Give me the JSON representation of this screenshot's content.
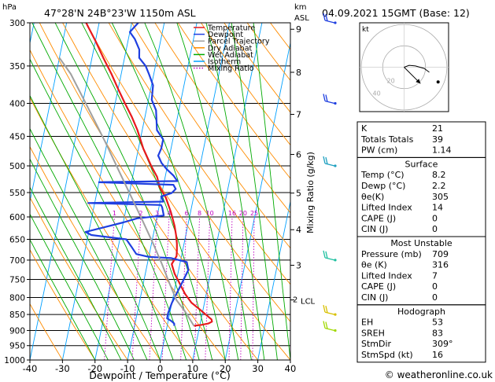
{
  "header": {
    "location": "47°28'N  24B°23'W  1150m  ASL",
    "datetime": "04.09.2021  15GMT  (Base: 12)"
  },
  "chart_data": {
    "type": "line",
    "title": "47°28'N  24B°23'W  1150m  ASL",
    "xlabel": "Dewpoint / Temperature (°C)",
    "ylabel": "hPa",
    "ylabel_right_top": "km",
    "ylabel_right_sub": "ASL",
    "mixing_ratio_label": "Mixing Ratio (g/kg)",
    "xlim": [
      -40,
      40
    ],
    "ylim": [
      1000,
      300
    ],
    "y_scale": "log",
    "x_ticks": [
      -40,
      -30,
      -20,
      -10,
      0,
      10,
      20,
      30,
      40
    ],
    "pressure_ticks": [
      300,
      350,
      400,
      450,
      500,
      550,
      600,
      650,
      700,
      750,
      800,
      850,
      900,
      950,
      1000
    ],
    "km_ticks": [
      {
        "label": "9",
        "p": 307
      },
      {
        "label": "8",
        "p": 358
      },
      {
        "label": "7",
        "p": 416
      },
      {
        "label": "6",
        "p": 480
      },
      {
        "label": "5",
        "p": 551
      },
      {
        "label": "4",
        "p": 628
      },
      {
        "label": "3",
        "p": 713
      }
    ],
    "lcl": {
      "label": "LCL",
      "p": 807
    },
    "mixing_ratio_values": [
      "1",
      "2",
      "3",
      "4",
      "6",
      "8",
      "10",
      "16",
      "20",
      "25"
    ],
    "legend": {
      "position": "top-left",
      "entries": [
        {
          "name": "Temperature",
          "color": "#e8191c"
        },
        {
          "name": "Dewpoint",
          "color": "#1f3fe0"
        },
        {
          "name": "Parcel Trajectory",
          "color": "#a0a0a0"
        },
        {
          "name": "Dry Adiabat",
          "color": "#ff8c00"
        },
        {
          "name": "Wet Adiabat",
          "color": "#00aa00"
        },
        {
          "name": "Isotherm",
          "color": "#00a0ff"
        },
        {
          "name": "Mixing Ratio",
          "color": "#c000c0"
        }
      ]
    },
    "series": [
      {
        "name": "Temperature",
        "color": "#e8191c",
        "points": [
          [
            8.2,
            885
          ],
          [
            10.5,
            882
          ],
          [
            12.5,
            878
          ],
          [
            13.5,
            872
          ],
          [
            13.2,
            865
          ],
          [
            11.8,
            855
          ],
          [
            9,
            835
          ],
          [
            6,
            815
          ],
          [
            3.5,
            790
          ],
          [
            1.5,
            765
          ],
          [
            -1,
            735
          ],
          [
            -2.5,
            710
          ],
          [
            -1.5,
            690
          ],
          [
            -1.8,
            675
          ],
          [
            -2.2,
            660
          ],
          [
            -3,
            640
          ],
          [
            -4,
            620
          ],
          [
            -6,
            590
          ],
          [
            -8.5,
            560
          ],
          [
            -11,
            540
          ],
          [
            -12.5,
            520
          ],
          [
            -15,
            500
          ],
          [
            -18.5,
            470
          ],
          [
            -21.5,
            440
          ],
          [
            -24,
            420
          ],
          [
            -27,
            400
          ],
          [
            -30,
            380
          ],
          [
            -33,
            360
          ],
          [
            -36.5,
            340
          ],
          [
            -40,
            320
          ],
          [
            -43,
            305
          ],
          [
            -44,
            300
          ]
        ]
      },
      {
        "name": "Dewpoint",
        "color": "#1f3fe0",
        "points": [
          [
            2.2,
            885
          ],
          [
            2,
            878
          ],
          [
            1,
            870
          ],
          [
            -0.5,
            862
          ],
          [
            -0.5,
            845
          ],
          [
            0,
            815
          ],
          [
            1,
            785
          ],
          [
            2,
            755
          ],
          [
            3,
            725
          ],
          [
            2,
            705
          ],
          [
            -3,
            695
          ],
          [
            -10,
            692
          ],
          [
            -14,
            685
          ],
          [
            -16,
            667
          ],
          [
            -18,
            650
          ],
          [
            -29,
            640
          ],
          [
            -31,
            633
          ],
          [
            -20,
            612
          ],
          [
            -16,
            603
          ],
          [
            -8,
            597
          ],
          [
            -9,
            580
          ],
          [
            -9.5,
            575
          ],
          [
            -32,
            571
          ],
          [
            -9,
            568
          ],
          [
            -10,
            558
          ],
          [
            -7,
            551
          ],
          [
            -6,
            543
          ],
          [
            -7,
            535
          ],
          [
            -30,
            530
          ],
          [
            -6,
            528
          ],
          [
            -7.5,
            518
          ],
          [
            -10,
            506
          ],
          [
            -12,
            495
          ],
          [
            -13.5,
            482
          ],
          [
            -13,
            470
          ],
          [
            -13,
            455
          ],
          [
            -15.5,
            440
          ],
          [
            -17,
            410
          ],
          [
            -19,
            395
          ],
          [
            -19.5,
            375
          ],
          [
            -21.5,
            360
          ],
          [
            -23,
            350
          ],
          [
            -25.5,
            340
          ],
          [
            -26,
            330
          ],
          [
            -28,
            318
          ],
          [
            -30,
            310
          ],
          [
            -29,
            305
          ],
          [
            -28,
            300
          ]
        ]
      },
      {
        "name": "Parcel Trajectory",
        "color": "#a0a0a0",
        "points": [
          [
            8.2,
            885
          ],
          [
            4.5,
            840
          ],
          [
            1.2,
            807
          ],
          [
            -2,
            760
          ],
          [
            -5.5,
            710
          ],
          [
            -9.5,
            660
          ],
          [
            -14,
            610
          ],
          [
            -19,
            560
          ],
          [
            -24.5,
            510
          ],
          [
            -30.5,
            460
          ],
          [
            -37.5,
            410
          ],
          [
            -45.5,
            360
          ],
          [
            -50,
            340
          ]
        ]
      }
    ],
    "isotherm_step": 10,
    "skew_per_decade": 43
  },
  "hodograph": {
    "label": "kt",
    "ring_labels": [
      "20",
      "40"
    ],
    "points": [
      [
        0,
        0
      ],
      [
        4,
        1.5
      ],
      [
        9,
        1
      ],
      [
        16,
        -1
      ],
      [
        20,
        -4
      ]
    ],
    "storm_arrow": [
      [
        0,
        0
      ],
      [
        13,
        -13
      ]
    ],
    "motion_dot": [
      30,
      -13
    ]
  },
  "indices": {
    "block1": [
      {
        "label": "K",
        "value": "21"
      },
      {
        "label": "Totals Totals",
        "value": "39"
      },
      {
        "label": "PW (cm)",
        "value": "1.14"
      }
    ],
    "surface": {
      "title": "Surface",
      "rows": [
        {
          "label": "Temp (°C)",
          "value": "8.2"
        },
        {
          "label": "Dewp (°C)",
          "value": "2.2"
        },
        {
          "label": "θe(K)",
          "value": "305"
        },
        {
          "label": "Lifted Index",
          "value": "14"
        },
        {
          "label": "CAPE (J)",
          "value": "0"
        },
        {
          "label": "CIN (J)",
          "value": "0"
        }
      ]
    },
    "unstable": {
      "title": "Most Unstable",
      "rows": [
        {
          "label": "Pressure (mb)",
          "value": "709"
        },
        {
          "label": "θe (K)",
          "value": "316"
        },
        {
          "label": "Lifted Index",
          "value": "7"
        },
        {
          "label": "CAPE (J)",
          "value": "0"
        },
        {
          "label": "CIN (J)",
          "value": "0"
        }
      ]
    },
    "hodograph_block": {
      "title": "Hodograph",
      "rows": [
        {
          "label": "EH",
          "value": "53"
        },
        {
          "label": "SREH",
          "value": "83"
        },
        {
          "label": "StmDir",
          "value": "309°"
        },
        {
          "label": "StmSpd (kt)",
          "value": "16"
        }
      ]
    }
  },
  "wind_barbs": [
    {
      "p": 300,
      "color": "#1f3fe0"
    },
    {
      "p": 400,
      "color": "#1f3fe0"
    },
    {
      "p": 500,
      "color": "#1fa0c0"
    },
    {
      "p": 700,
      "color": "#1fc0a0"
    },
    {
      "p": 850,
      "color": "#d8c000"
    },
    {
      "p": 900,
      "color": "#a0d800"
    }
  ],
  "footer": {
    "copyright": "© weatheronline.co.uk"
  }
}
